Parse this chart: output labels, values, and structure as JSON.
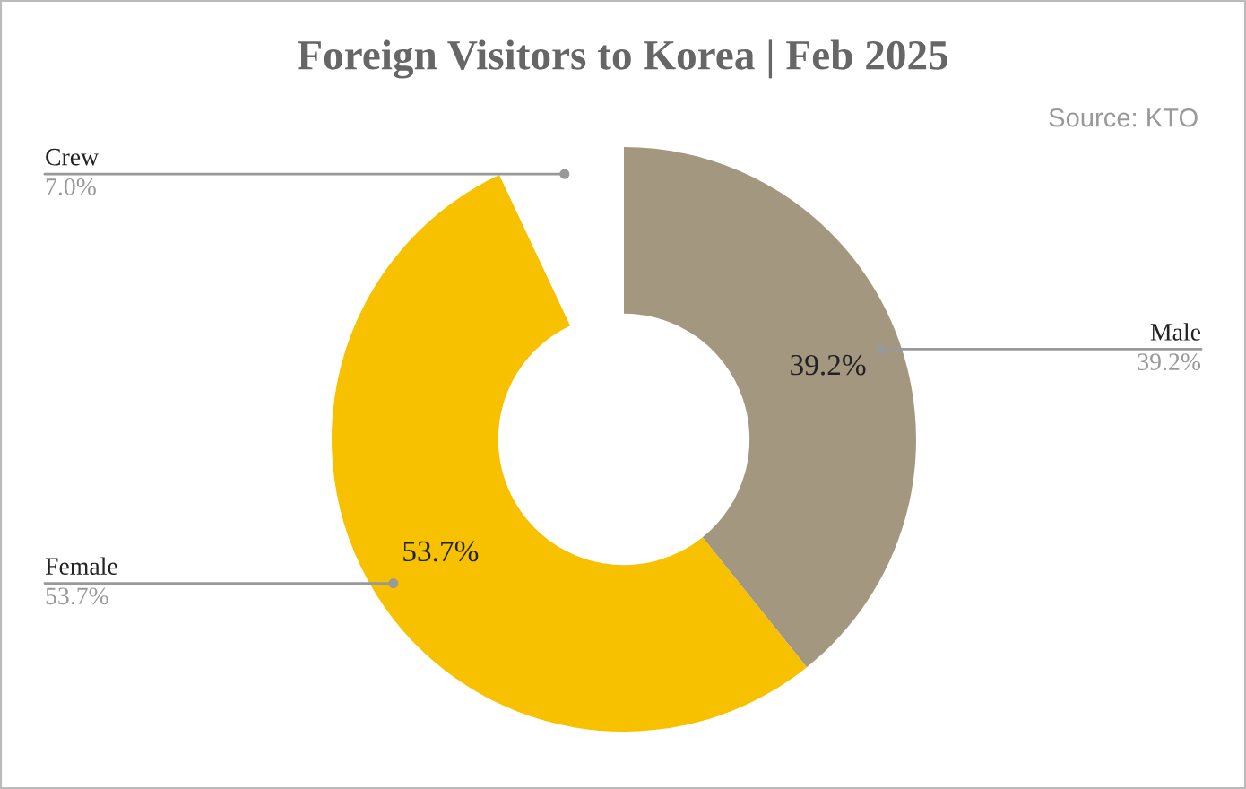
{
  "chart_data": {
    "type": "donut",
    "title": "Foreign Visitors to Korea | Feb 2025",
    "subtitle": "Source: KTO",
    "categories": [
      "Male",
      "Female",
      "Crew"
    ],
    "values": [
      39.2,
      53.7,
      7.0
    ],
    "colors": [
      "#a39780",
      "#f7c100",
      "#ffffff"
    ],
    "value_labels": [
      "39.2%",
      "53.7%",
      "7.0%"
    ],
    "annotations": [
      "39.2%",
      "53.7%"
    ],
    "legend": false
  }
}
